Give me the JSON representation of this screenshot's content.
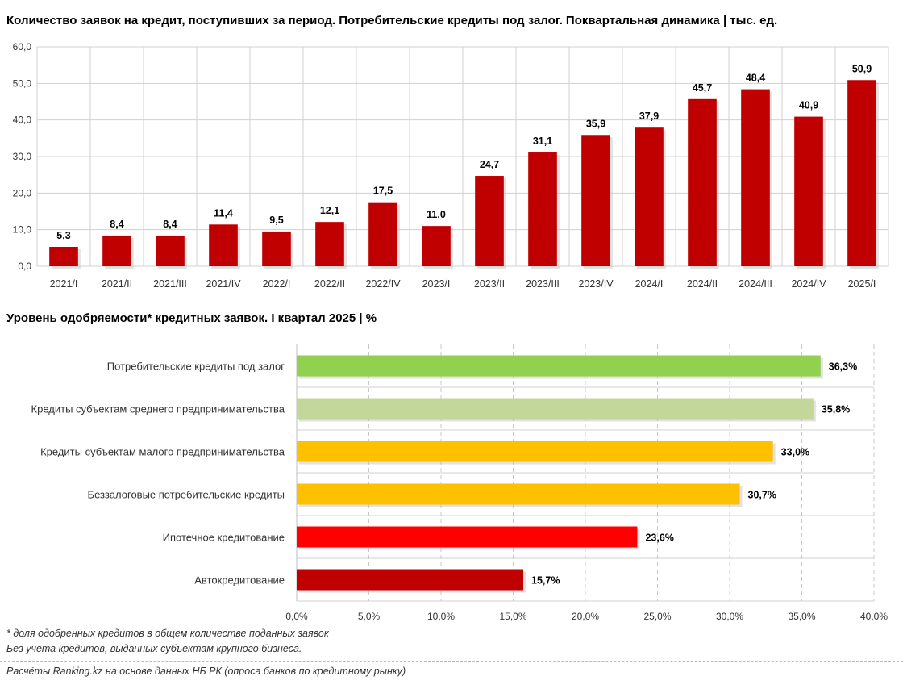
{
  "chart_data": [
    {
      "type": "bar",
      "title": "Количество заявок на кредит, поступивших за период. Потребительские кредиты под залог. Поквартальная динамика | тыс. ед.",
      "categories": [
        "2021/I",
        "2021/II",
        "2021/III",
        "2021/IV",
        "2022/I",
        "2022/II",
        "2022/IV",
        "2023/I",
        "2023/II",
        "2023/III",
        "2023/IV",
        "2024/I",
        "2024/II",
        "2024/III",
        "2024/IV",
        "2025/I"
      ],
      "values": [
        5.3,
        8.4,
        8.4,
        11.4,
        9.5,
        12.1,
        17.5,
        11.0,
        24.7,
        31.1,
        35.9,
        37.9,
        45.7,
        48.4,
        40.9,
        50.9
      ],
      "value_labels": [
        "5,3",
        "8,4",
        "8,4",
        "11,4",
        "9,5",
        "12,1",
        "17,5",
        "11,0",
        "24,7",
        "31,1",
        "35,9",
        "37,9",
        "45,7",
        "48,4",
        "40,9",
        "50,9"
      ],
      "ylim": [
        0,
        60
      ],
      "yticks": [
        "0,0",
        "10,0",
        "20,0",
        "30,0",
        "40,0",
        "50,0",
        "60,0"
      ],
      "xlabel": "",
      "ylabel": "",
      "color": "#c00000",
      "grid": true
    },
    {
      "type": "bar",
      "orientation": "horizontal",
      "title": "Уровень одобряемости* кредитных заявок. I квартал 2025 | %",
      "categories": [
        "Потребительские кредиты под залог",
        "Кредиты субъектам среднего предпринимательства",
        "Кредиты субъектам малого предпринимательства",
        "Беззалоговые потребительские кредиты",
        "Ипотечное кредитование",
        "Автокредитование"
      ],
      "values": [
        36.3,
        35.8,
        33.0,
        30.7,
        23.6,
        15.7
      ],
      "value_labels": [
        "36,3%",
        "35,8%",
        "33,0%",
        "30,7%",
        "23,6%",
        "15,7%"
      ],
      "colors": [
        "#92d050",
        "#c4d79b",
        "#ffc000",
        "#ffc000",
        "#ff0000",
        "#c00000"
      ],
      "xlim": [
        0,
        40
      ],
      "xticks": [
        "0,0%",
        "5,0%",
        "10,0%",
        "15,0%",
        "20,0%",
        "25,0%",
        "30,0%",
        "35,0%",
        "40,0%"
      ],
      "xlabel": "",
      "ylabel": "",
      "grid": true
    }
  ],
  "notes": {
    "footnote": "* доля одобренных кредитов в общем количестве поданных заявок",
    "exclusion": "Без учёта кредитов, выданных субъектам крупного бизнеса.",
    "source": "Расчёты Ranking.kz на основе данных НБ РК (опроса банков по кредитному рынку)"
  }
}
